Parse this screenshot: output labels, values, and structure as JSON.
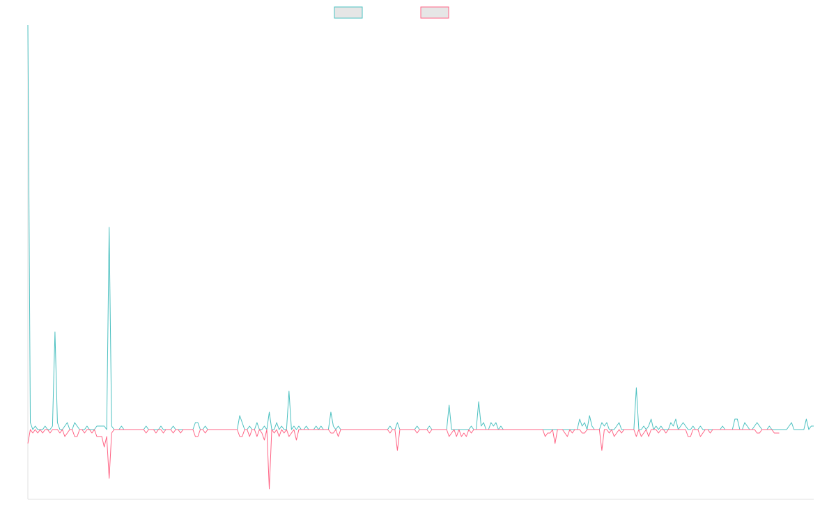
{
  "colors": {
    "series_1": "#4bc0c0",
    "series_2": "#ff6384",
    "legend_fill": "#e6e6e6",
    "axis": "#e0e0e0"
  },
  "chart_data": {
    "type": "line",
    "title": "",
    "xlabel": "",
    "ylabel": "",
    "grid": false,
    "legend": "top-center",
    "ylim": [
      -10,
      58
    ],
    "series": [
      {
        "color": "#4bc0c0",
        "values": [
          58,
          1,
          0,
          0.5,
          0,
          0,
          0,
          0.5,
          0,
          0,
          0.5,
          14,
          1,
          0,
          0,
          0.5,
          1,
          0,
          0,
          1,
          0.5,
          0,
          0,
          0,
          0.5,
          0,
          0,
          0,
          0.5,
          0.5,
          0.5,
          0.5,
          0,
          29,
          0.5,
          0,
          0,
          0,
          0.5,
          0,
          0,
          0,
          0,
          0,
          0,
          0,
          0,
          0,
          0.5,
          0,
          0,
          0,
          0,
          0,
          0.5,
          0,
          0,
          0,
          0,
          0.5,
          0,
          0,
          0,
          0,
          0,
          0,
          0,
          0,
          1,
          1,
          0,
          0,
          0.5,
          0,
          0,
          0,
          0,
          0,
          0,
          0,
          0,
          0,
          0,
          0,
          0,
          0,
          2,
          1,
          0,
          0,
          0.5,
          0,
          0,
          1,
          0,
          0,
          0.5,
          0,
          2.5,
          0,
          0,
          1,
          0,
          0.5,
          0,
          0,
          5.5,
          0,
          0.5,
          0,
          0.5,
          0,
          0,
          0.5,
          0,
          0,
          0,
          0.5,
          0,
          0.5,
          0,
          0,
          0,
          2.5,
          0.5,
          0,
          0.5,
          0,
          0,
          0,
          0,
          0,
          0,
          0,
          0,
          0,
          0,
          0,
          0,
          0,
          0,
          0,
          0,
          0,
          0,
          0,
          0,
          0.5,
          0,
          0,
          1,
          0,
          0,
          0,
          0,
          0,
          0,
          0,
          0.5,
          0,
          0,
          0,
          0,
          0.5,
          0,
          0,
          0,
          0,
          0,
          0,
          0,
          3.5,
          0,
          0,
          0,
          0,
          0,
          0,
          0,
          0,
          0.5,
          0,
          0,
          4,
          0.5,
          1,
          0,
          0,
          1,
          0.5,
          1,
          0,
          0.5,
          0,
          0,
          0,
          0,
          0,
          0,
          0,
          0,
          0,
          0,
          0,
          0,
          0,
          0,
          0,
          0,
          0,
          0,
          0,
          0,
          0,
          0,
          0,
          0,
          0,
          0,
          0,
          0,
          0,
          0,
          0,
          1.5,
          0.5,
          1,
          0,
          2,
          0.5,
          0,
          0,
          0,
          1,
          0.5,
          1,
          0,
          0,
          0,
          0.5,
          1,
          0,
          0,
          0,
          0,
          0,
          0,
          6,
          0,
          0,
          0.5,
          0,
          0.5,
          1.5,
          0,
          0.5,
          0,
          0.5,
          0,
          0,
          0,
          1,
          0.5,
          1.5,
          0,
          0.5,
          1,
          0.5,
          0,
          0,
          0.5,
          0,
          0,
          0.5,
          0,
          0,
          0,
          0,
          0,
          0,
          0,
          0,
          0.5,
          0,
          0,
          0,
          0,
          1.5,
          1.5,
          0,
          0,
          1,
          0.5,
          0,
          0,
          0.5,
          1,
          0.5,
          0,
          0,
          0,
          0.5,
          0,
          0,
          0,
          0,
          0,
          0,
          0,
          0.5,
          1,
          0,
          0,
          0,
          0,
          0,
          1.5,
          0,
          0.5,
          0.5
        ]
      },
      {
        "color": "#ff6384",
        "values": [
          -2,
          0,
          -0.5,
          0,
          -0.5,
          0,
          -0.5,
          0,
          0,
          -0.5,
          0,
          0,
          0,
          -0.5,
          0,
          -1,
          -0.5,
          0,
          0,
          -1,
          -1,
          0,
          0,
          -0.5,
          0,
          0,
          -0.5,
          0,
          -1,
          -1,
          -1,
          -2.5,
          -1,
          -7,
          -0.5,
          0,
          0,
          0,
          0,
          0,
          0,
          0,
          0,
          0,
          0,
          0,
          0,
          0,
          -0.5,
          0,
          0,
          0,
          -0.5,
          0,
          0,
          -0.5,
          0,
          0,
          0,
          -0.5,
          0,
          0,
          -0.5,
          0,
          0,
          0,
          0,
          0,
          -1,
          -1,
          0,
          0,
          -0.5,
          0,
          0,
          0,
          0,
          0,
          0,
          0,
          0,
          0,
          0,
          0,
          0,
          0,
          -1,
          -1,
          0,
          0,
          -1,
          0,
          0,
          -1,
          0,
          -0.5,
          -1.5,
          0,
          -8.5,
          0,
          -0.5,
          0,
          -1,
          0,
          -0.5,
          0,
          -1,
          -0.5,
          0,
          -1.5,
          0,
          0,
          0,
          0,
          0,
          0,
          0,
          0,
          0,
          0,
          0,
          0,
          0,
          -0.5,
          -0.5,
          0,
          -1,
          0,
          0,
          0,
          0,
          0,
          0,
          0,
          0,
          0,
          0,
          0,
          0,
          0,
          0,
          0,
          0,
          0,
          0,
          0,
          0,
          -0.5,
          0,
          0,
          -3,
          0,
          0,
          0,
          0,
          0,
          0,
          0,
          -0.5,
          0,
          0,
          0,
          0,
          -0.5,
          0,
          0,
          0,
          0,
          0,
          0,
          0,
          -1,
          -0.5,
          0,
          -1,
          0,
          -1,
          -0.5,
          -1,
          0,
          -0.5,
          0,
          0,
          0,
          0,
          0,
          0,
          0,
          0,
          0,
          0,
          0,
          0,
          0,
          0,
          0,
          0,
          0,
          0,
          0,
          0,
          0,
          0,
          0,
          0,
          0,
          0,
          0,
          0,
          0,
          -1,
          -0.5,
          -0.5,
          0,
          -2,
          0,
          0,
          0,
          -0.5,
          -1,
          0,
          -0.5,
          0,
          0,
          0,
          -0.5,
          -0.5,
          0,
          0,
          0,
          0,
          0,
          0,
          -3,
          0,
          0,
          -0.5,
          0,
          -1,
          -0.5,
          0,
          -0.5,
          0,
          0,
          0,
          0,
          0,
          -1,
          0,
          -1,
          -0.5,
          0,
          -1,
          0,
          0,
          0,
          -0.5,
          0,
          0,
          -0.5,
          0,
          0,
          0,
          0,
          0,
          0,
          0,
          0,
          -1,
          -1,
          0,
          0,
          0,
          -1,
          -0.5,
          0,
          0,
          -0.5,
          0,
          0,
          0,
          0,
          0,
          0,
          0,
          0,
          0,
          0,
          0,
          0,
          0,
          0,
          0,
          0,
          0,
          0,
          -0.5,
          -0.5,
          0,
          0,
          0,
          0,
          0,
          -0.5,
          -0.5,
          -0.5
        ]
      }
    ]
  }
}
